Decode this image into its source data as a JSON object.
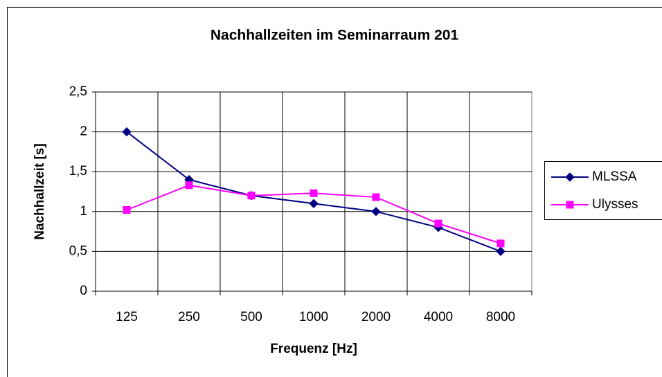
{
  "chart_data": {
    "type": "line",
    "title": "Nachhallzeiten im Seminarraum 201",
    "x_label": "Frequenz [Hz]",
    "y_label": "Nachhallzeit [s]",
    "categories": [
      "125",
      "250",
      "500",
      "1000",
      "2000",
      "4000",
      "8000"
    ],
    "series": [
      {
        "name": "MLSSA",
        "color": "#000080",
        "marker": "diamond",
        "values": [
          2,
          1.4,
          1.2,
          1.1,
          1.0,
          0.8,
          0.5
        ]
      },
      {
        "name": "Ulysses",
        "color": "#ff00ff",
        "marker": "square",
        "values": [
          1.02,
          1.33,
          1.2,
          1.23,
          1.18,
          0.85,
          0.6
        ]
      }
    ],
    "ylim": [
      0,
      2.5
    ],
    "yticks": [
      0,
      {
        "value": 0.5,
        "label": "0,5"
      },
      1,
      {
        "value": 1.5,
        "label": "1,5"
      },
      2,
      {
        "value": 2.5,
        "label": "2,5"
      }
    ],
    "grid": true,
    "legend": "right"
  }
}
